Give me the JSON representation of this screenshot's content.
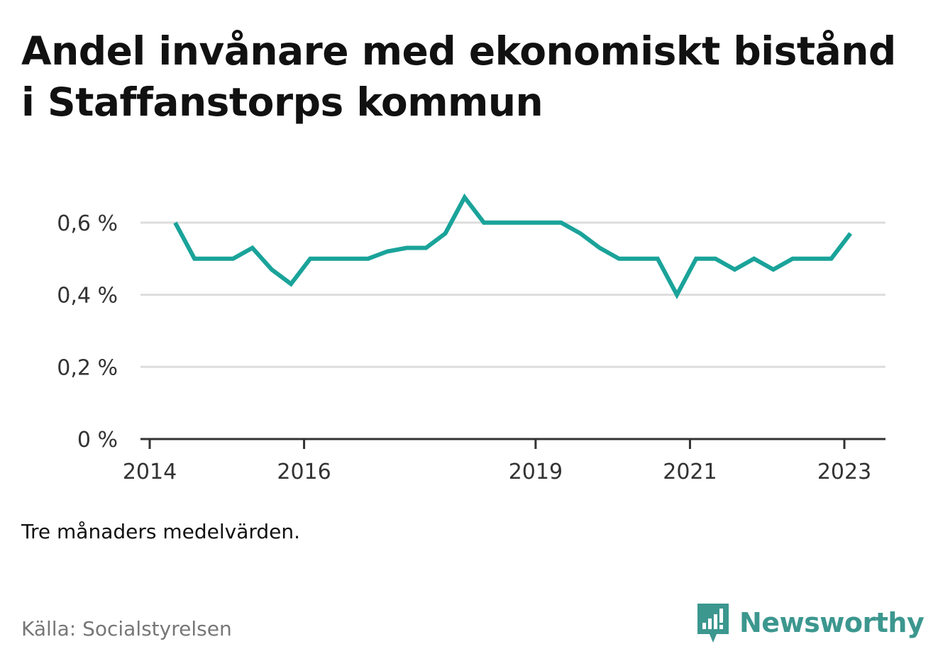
{
  "title": "Andel invånare med ekonomiskt bistånd i Staffanstorps kommun",
  "note": "Tre månaders medelvärden.",
  "source": "Källa: Socialstyrelsen",
  "brand": {
    "name": "Newsworthy",
    "icon": "newsworthy-logo-icon"
  },
  "colors": {
    "line": "#1aa39a",
    "grid": "#dddddd",
    "axis": "#333333",
    "brand": "#3c978f"
  },
  "chart_data": {
    "type": "line",
    "title": "",
    "xlabel": "",
    "ylabel": "",
    "ylim": [
      0,
      0.7
    ],
    "y_ticks": [
      0,
      0.2,
      0.4,
      0.6
    ],
    "y_tick_labels": [
      "0 %",
      "0,2 %",
      "0,4 %",
      "0,6 %"
    ],
    "x_ticks": [
      2014,
      2016,
      2019,
      2021,
      2023
    ],
    "x_tick_labels": [
      "2014",
      "2016",
      "2019",
      "2021",
      "2023"
    ],
    "grid": true,
    "series": [
      {
        "name": "",
        "x": [
          2014.33,
          2014.58,
          2014.83,
          2015.08,
          2015.33,
          2015.58,
          2015.83,
          2016.08,
          2016.33,
          2016.58,
          2016.83,
          2017.08,
          2017.33,
          2017.58,
          2017.83,
          2018.08,
          2018.33,
          2018.58,
          2018.83,
          2019.08,
          2019.33,
          2019.58,
          2019.83,
          2020.08,
          2020.33,
          2020.58,
          2020.83,
          2021.08,
          2021.33,
          2021.58,
          2021.83,
          2022.08,
          2022.33,
          2022.58,
          2022.83,
          2023.08
        ],
        "y": [
          0.6,
          0.5,
          0.5,
          0.5,
          0.53,
          0.47,
          0.43,
          0.5,
          0.5,
          0.5,
          0.5,
          0.52,
          0.53,
          0.53,
          0.57,
          0.67,
          0.6,
          0.6,
          0.6,
          0.6,
          0.6,
          0.57,
          0.53,
          0.5,
          0.5,
          0.5,
          0.4,
          0.5,
          0.5,
          0.47,
          0.5,
          0.47,
          0.5,
          0.5,
          0.5,
          0.57
        ]
      }
    ]
  }
}
